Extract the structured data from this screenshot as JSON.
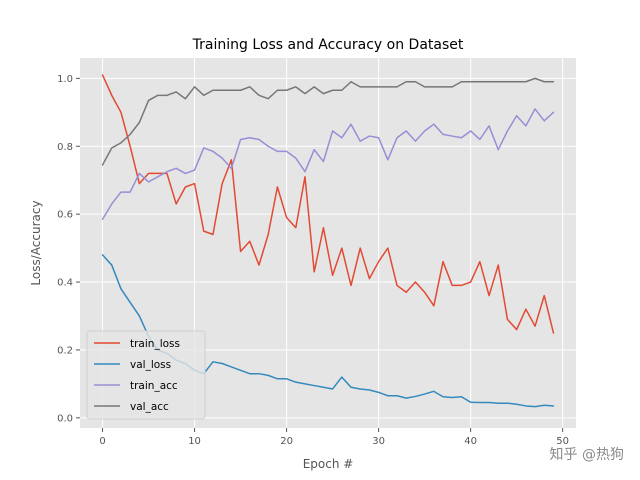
{
  "chart_data": {
    "type": "line",
    "title": "Training Loss and Accuracy on Dataset",
    "xlabel": "Epoch #",
    "ylabel": "Loss/Accuracy",
    "xlim": [
      -2.45,
      51.45
    ],
    "ylim": [
      -0.03,
      1.06
    ],
    "xticks": [
      0,
      10,
      20,
      30,
      40,
      50
    ],
    "yticks": [
      0.0,
      0.2,
      0.4,
      0.6,
      0.8,
      1.0
    ],
    "xtick_labels": [
      "0",
      "10",
      "20",
      "30",
      "40",
      "50"
    ],
    "ytick_labels": [
      "0.0",
      "0.2",
      "0.4",
      "0.6",
      "0.8",
      "1.0"
    ],
    "grid": true,
    "legend_position": "lower-left",
    "x": [
      0,
      1,
      2,
      3,
      4,
      5,
      6,
      7,
      8,
      9,
      10,
      11,
      12,
      13,
      14,
      15,
      16,
      17,
      18,
      19,
      20,
      21,
      22,
      23,
      24,
      25,
      26,
      27,
      28,
      29,
      30,
      31,
      32,
      33,
      34,
      35,
      36,
      37,
      38,
      39,
      40,
      41,
      42,
      43,
      44,
      45,
      46,
      47,
      48,
      49
    ],
    "series": [
      {
        "name": "train_loss",
        "color": "#e24a33",
        "values": [
          1.01,
          0.95,
          0.9,
          0.8,
          0.69,
          0.72,
          0.72,
          0.72,
          0.63,
          0.68,
          0.69,
          0.55,
          0.54,
          0.69,
          0.76,
          0.49,
          0.52,
          0.45,
          0.54,
          0.68,
          0.59,
          0.56,
          0.71,
          0.43,
          0.56,
          0.42,
          0.5,
          0.39,
          0.5,
          0.41,
          0.46,
          0.5,
          0.39,
          0.37,
          0.4,
          0.37,
          0.33,
          0.46,
          0.39,
          0.39,
          0.4,
          0.46,
          0.36,
          0.45,
          0.29,
          0.26,
          0.32,
          0.27,
          0.36,
          0.25
        ]
      },
      {
        "name": "val_loss",
        "color": "#348abd",
        "values": [
          0.48,
          0.45,
          0.38,
          0.34,
          0.3,
          0.24,
          0.2,
          0.19,
          0.17,
          0.16,
          0.14,
          0.13,
          0.165,
          0.16,
          0.15,
          0.14,
          0.13,
          0.13,
          0.125,
          0.115,
          0.115,
          0.105,
          0.1,
          0.095,
          0.09,
          0.085,
          0.12,
          0.09,
          0.085,
          0.082,
          0.075,
          0.065,
          0.065,
          0.058,
          0.063,
          0.07,
          0.078,
          0.062,
          0.06,
          0.062,
          0.046,
          0.045,
          0.045,
          0.043,
          0.043,
          0.04,
          0.035,
          0.033,
          0.037,
          0.035
        ]
      },
      {
        "name": "train_acc",
        "color": "#988ed5",
        "values": [
          0.585,
          0.63,
          0.665,
          0.665,
          0.72,
          0.695,
          0.71,
          0.725,
          0.735,
          0.72,
          0.73,
          0.795,
          0.785,
          0.765,
          0.735,
          0.82,
          0.825,
          0.82,
          0.8,
          0.785,
          0.785,
          0.765,
          0.725,
          0.79,
          0.755,
          0.845,
          0.825,
          0.865,
          0.815,
          0.83,
          0.825,
          0.76,
          0.825,
          0.845,
          0.815,
          0.845,
          0.865,
          0.835,
          0.83,
          0.825,
          0.845,
          0.82,
          0.86,
          0.79,
          0.845,
          0.89,
          0.86,
          0.91,
          0.875,
          0.9
        ]
      },
      {
        "name": "val_acc",
        "color": "#777777",
        "values": [
          0.745,
          0.795,
          0.81,
          0.835,
          0.87,
          0.935,
          0.95,
          0.95,
          0.96,
          0.94,
          0.975,
          0.95,
          0.965,
          0.965,
          0.965,
          0.965,
          0.975,
          0.95,
          0.94,
          0.965,
          0.965,
          0.975,
          0.955,
          0.975,
          0.955,
          0.965,
          0.965,
          0.99,
          0.975,
          0.975,
          0.975,
          0.975,
          0.975,
          0.99,
          0.99,
          0.975,
          0.975,
          0.975,
          0.975,
          0.99,
          0.99,
          0.99,
          0.99,
          0.99,
          0.99,
          0.99,
          0.99,
          1.0,
          0.99,
          0.99
        ]
      }
    ]
  },
  "watermark": {
    "text": "知乎 @热狗"
  }
}
